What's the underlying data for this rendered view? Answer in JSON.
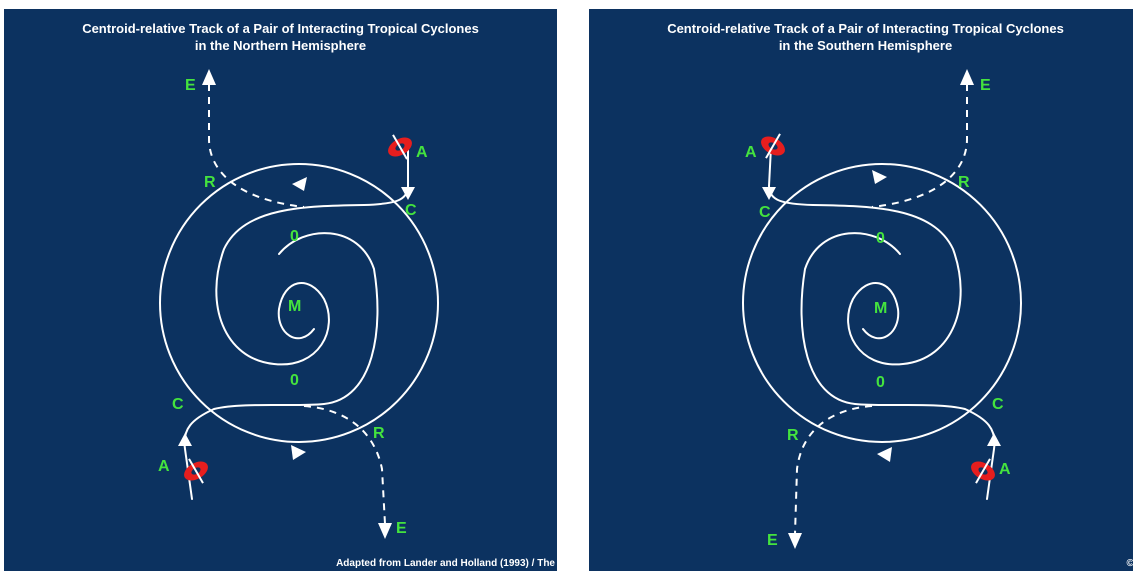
{
  "panels": [
    {
      "title_line1": "Centroid-relative Track of a Pair of Interacting Tropical Cyclones",
      "title_line2": "in the Northern Hemisphere",
      "credit": "Adapted from Lander and Holland (1993) / The",
      "labels": {
        "e_top": "E",
        "e_bottom": "E",
        "a_top": "A",
        "a_bottom": "A",
        "r_top": "R",
        "r_bottom": "R",
        "c_top": "C",
        "c_bottom": "C",
        "zero_top": "0",
        "zero_bottom": "0",
        "m": "M"
      }
    },
    {
      "title_line1": "Centroid-relative Track of a Pair of Interacting Tropical Cyclones",
      "title_line2": "in the Southern Hemisphere",
      "credit": "©T",
      "labels": {
        "e_top": "E",
        "e_bottom": "E",
        "a_top": "A",
        "a_bottom": "A",
        "r_top": "R",
        "r_bottom": "R",
        "c_top": "C",
        "c_bottom": "C",
        "zero_top": "0",
        "zero_bottom": "0",
        "m": "M"
      }
    }
  ],
  "colors": {
    "background": "#0c3260",
    "track": "#ffffff",
    "label": "#44e33e",
    "cyclone": "#e61e1e"
  },
  "icons": {
    "cyclone": "cyclone-symbol-icon",
    "arrow": "arrowhead-icon"
  }
}
